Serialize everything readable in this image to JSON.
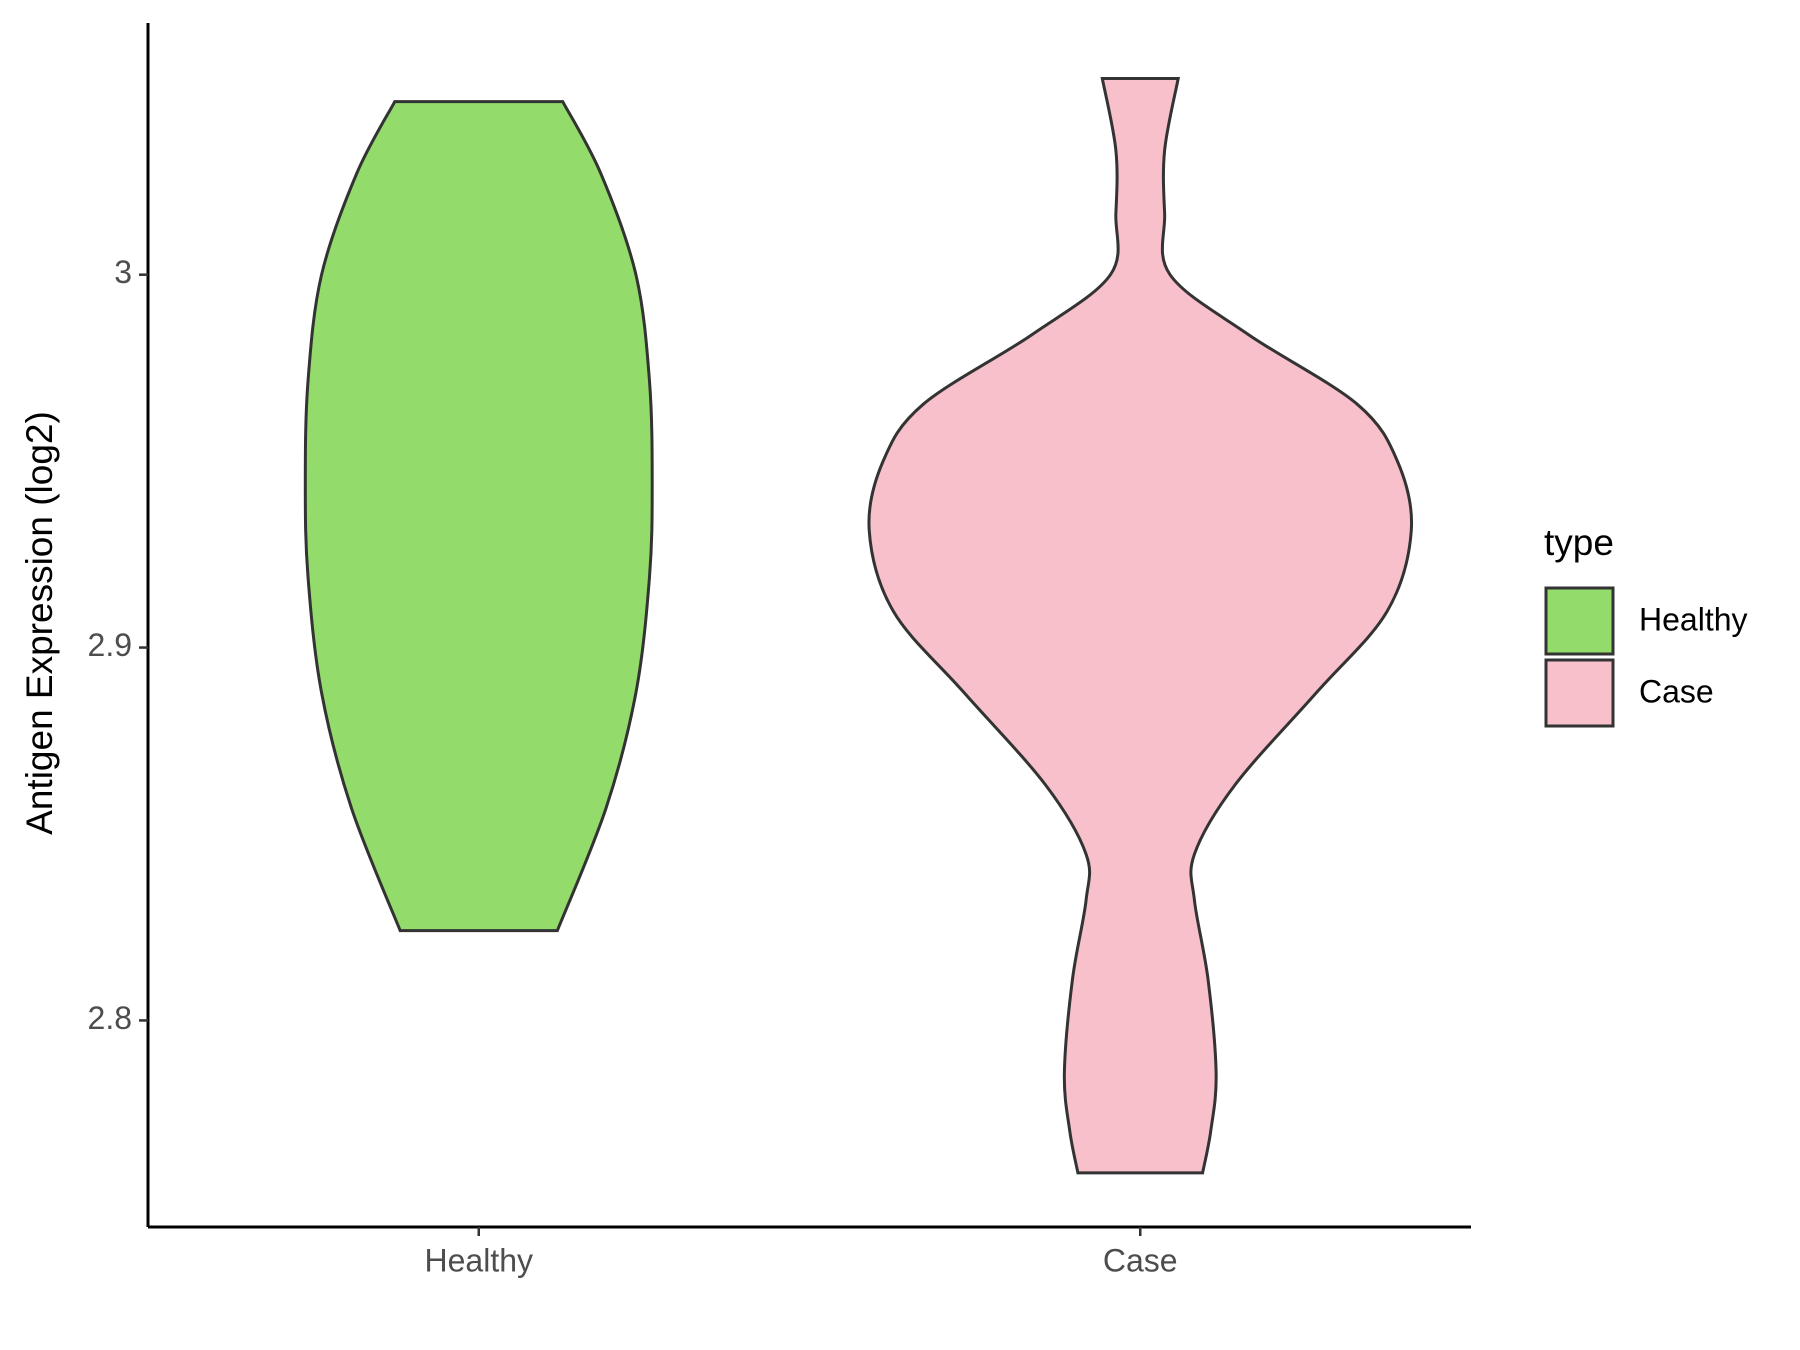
{
  "chart_data": {
    "type": "violin",
    "y_label": "Antigen Expression (log2)",
    "categories": [
      "Healthy",
      "Case"
    ],
    "ylim": [
      2.7446,
      3.0675
    ],
    "yticks": [
      2.8,
      2.9,
      3.0
    ],
    "legend_title": "type",
    "legend_position": "right",
    "series": [
      {
        "name": "Healthy",
        "color": "#93dc6b",
        "y": [
          3.0464,
          3.0272,
          3.0,
          2.9715,
          2.9437,
          2.9189,
          2.8879,
          2.857,
          2.8241
        ],
        "density": [
          0.31,
          0.45,
          0.58,
          0.63,
          0.64,
          0.63,
          0.58,
          0.47,
          0.29
        ]
      },
      {
        "name": "Case",
        "color": "#f7c0cb",
        "y": [
          3.0526,
          3.0334,
          3.0164,
          3.0,
          2.9839,
          2.9653,
          2.9498,
          2.9313,
          2.9096,
          2.8879,
          2.8632,
          2.8446,
          2.8322,
          2.8111,
          2.7858,
          2.7703,
          2.7591
        ],
        "density": [
          0.14,
          0.09,
          0.09,
          0.11,
          0.4,
          0.8,
          0.95,
          1.0,
          0.91,
          0.65,
          0.35,
          0.2,
          0.2,
          0.25,
          0.28,
          0.26,
          0.23
        ]
      }
    ]
  }
}
